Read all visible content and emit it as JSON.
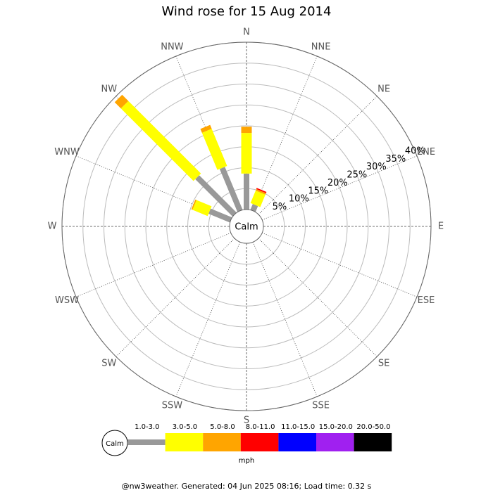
{
  "chart_data": {
    "type": "windrose",
    "title": "Wind rose for 15 Aug 2014",
    "directions": [
      "N",
      "NNE",
      "NE",
      "ENE",
      "E",
      "ESE",
      "SE",
      "SSE",
      "S",
      "SSW",
      "SW",
      "WSW",
      "W",
      "WNW",
      "NW",
      "NNW"
    ],
    "series": [
      {
        "name": "1.0-3.0",
        "color": "#999999",
        "values": [
          8.6,
          1.5,
          0,
          0,
          0,
          0,
          0,
          0,
          0,
          0,
          0,
          0,
          0,
          5.5,
          12.6,
          11.1
        ]
      },
      {
        "name": "3.0-5.0",
        "color": "#ffff00",
        "values": [
          9.7,
          3.2,
          0,
          0,
          0,
          0,
          0,
          0,
          0,
          0,
          0,
          0,
          0,
          3.9,
          24.5,
          9.6
        ]
      },
      {
        "name": "5.0-8.0",
        "color": "#ffa500",
        "values": [
          1.5,
          0.4,
          0,
          0,
          0,
          0,
          0,
          0,
          0,
          0,
          0,
          0,
          0,
          0.3,
          2.1,
          1.0
        ]
      },
      {
        "name": "8.0-11.0",
        "color": "#ff0000",
        "values": [
          0,
          0.3,
          0,
          0,
          0,
          0,
          0,
          0,
          0,
          0,
          0,
          0,
          0,
          0,
          0,
          0
        ]
      },
      {
        "name": "11.0-15.0",
        "color": "#0000ff",
        "values": [
          0,
          0,
          0,
          0,
          0,
          0,
          0,
          0,
          0,
          0,
          0,
          0,
          0,
          0,
          0,
          0
        ]
      },
      {
        "name": "15.0-20.0",
        "color": "#a020f0",
        "values": [
          0,
          0,
          0,
          0,
          0,
          0,
          0,
          0,
          0,
          0,
          0,
          0,
          0,
          0,
          0,
          0
        ]
      },
      {
        "name": "20.0-50.0",
        "color": "#000000",
        "values": [
          0,
          0,
          0,
          0,
          0,
          0,
          0,
          0,
          0,
          0,
          0,
          0,
          0,
          0,
          0,
          0
        ]
      }
    ],
    "rlim": [
      0,
      40
    ],
    "rticks": [
      {
        "value": 5,
        "label": "5%"
      },
      {
        "value": 10,
        "label": "10%"
      },
      {
        "value": 15,
        "label": "15%"
      },
      {
        "value": 20,
        "label": "20%"
      },
      {
        "value": 25,
        "label": "25%"
      },
      {
        "value": 30,
        "label": "30%"
      },
      {
        "value": 35,
        "label": "35%"
      },
      {
        "value": 40,
        "label": "40%"
      }
    ],
    "center_label": "Calm",
    "unit": "mph",
    "footer": "@nw3weather. Generated: 04 Jun 2025 08:16; Load time: 0.32 s"
  }
}
